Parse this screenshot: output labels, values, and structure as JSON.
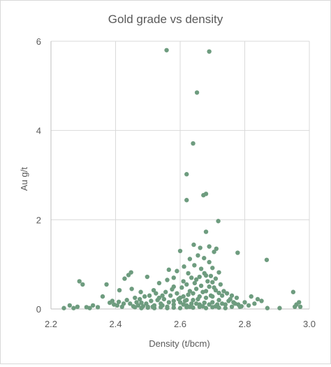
{
  "chart_data": {
    "type": "scatter",
    "title": "Gold grade vs density",
    "xlabel": "Density (t/bcm)",
    "ylabel": "Au g/t",
    "xlim": [
      2.2,
      3.0
    ],
    "ylim": [
      0,
      6
    ],
    "xticks": [
      "2.2",
      "2.4",
      "2.6",
      "2.8",
      "3.0"
    ],
    "yticks": [
      "0",
      "2",
      "4",
      "6"
    ],
    "xtick_values": [
      2.2,
      2.4,
      2.6,
      2.8,
      3.0
    ],
    "ytick_values": [
      0,
      2,
      4,
      6
    ],
    "grid": true,
    "marker_color": "#6e9c7f",
    "series": [
      {
        "points": [
          [
            2.558,
            5.8
          ],
          [
            2.69,
            5.77
          ],
          [
            2.652,
            4.85
          ],
          [
            2.64,
            3.71
          ],
          [
            2.62,
            3.02
          ],
          [
            2.62,
            2.44
          ],
          [
            2.68,
            2.58
          ],
          [
            2.672,
            2.55
          ],
          [
            2.718,
            1.97
          ],
          [
            2.68,
            1.73
          ],
          [
            2.642,
            1.44
          ],
          [
            2.662,
            1.37
          ],
          [
            2.69,
            1.4
          ],
          [
            2.778,
            1.26
          ],
          [
            2.868,
            1.1
          ],
          [
            2.712,
            1.35
          ],
          [
            2.6,
            1.3
          ],
          [
            2.655,
            1.2
          ],
          [
            2.705,
            1.28
          ],
          [
            2.63,
            1.12
          ],
          [
            2.674,
            1.14
          ],
          [
            2.69,
            1.05
          ],
          [
            2.612,
            0.95
          ],
          [
            2.644,
            0.98
          ],
          [
            2.665,
            0.9
          ],
          [
            2.7,
            0.92
          ],
          [
            2.59,
            0.85
          ],
          [
            2.625,
            0.8
          ],
          [
            2.565,
            0.88
          ],
          [
            2.72,
            0.82
          ],
          [
            2.68,
            0.75
          ],
          [
            2.56,
            0.65
          ],
          [
            2.535,
            0.58
          ],
          [
            2.448,
            0.82
          ],
          [
            2.44,
            0.76
          ],
          [
            2.428,
            0.68
          ],
          [
            2.498,
            0.72
          ],
          [
            2.58,
            0.7
          ],
          [
            2.61,
            0.62
          ],
          [
            2.65,
            0.66
          ],
          [
            2.288,
            0.62
          ],
          [
            2.298,
            0.55
          ],
          [
            2.372,
            0.55
          ],
          [
            2.412,
            0.42
          ],
          [
            2.45,
            0.45
          ],
          [
            2.478,
            0.38
          ],
          [
            2.518,
            0.42
          ],
          [
            2.545,
            0.3
          ],
          [
            2.58,
            0.5
          ],
          [
            2.62,
            0.55
          ],
          [
            2.7,
            0.6
          ],
          [
            2.735,
            0.4
          ],
          [
            2.76,
            0.3
          ],
          [
            2.82,
            0.28
          ],
          [
            2.84,
            0.22
          ],
          [
            2.852,
            0.18
          ],
          [
            2.95,
            0.38
          ],
          [
            2.96,
            0.1
          ],
          [
            2.968,
            0.15
          ],
          [
            2.972,
            0.05
          ],
          [
            2.955,
            0.05
          ],
          [
            2.908,
            0.02
          ],
          [
            2.87,
            0.02
          ],
          [
            2.812,
            0.08
          ],
          [
            2.83,
            0.12
          ],
          [
            2.8,
            0.15
          ],
          [
            2.78,
            0.1
          ],
          [
            2.24,
            0.02
          ],
          [
            2.258,
            0.08
          ],
          [
            2.27,
            0.02
          ],
          [
            2.282,
            0.05
          ],
          [
            2.31,
            0.04
          ],
          [
            2.32,
            0.02
          ],
          [
            2.33,
            0.08
          ],
          [
            2.345,
            0.04
          ],
          [
            2.36,
            0.28
          ],
          [
            2.382,
            0.14
          ],
          [
            2.395,
            0.1
          ],
          [
            2.41,
            0.16
          ],
          [
            2.42,
            0.05
          ],
          [
            2.435,
            0.2
          ],
          [
            2.445,
            0.12
          ],
          [
            2.46,
            0.25
          ],
          [
            2.47,
            0.08
          ],
          [
            2.48,
            0.14
          ],
          [
            2.49,
            0.28
          ],
          [
            2.5,
            0.05
          ],
          [
            2.51,
            0.18
          ],
          [
            2.52,
            0.08
          ],
          [
            2.53,
            0.2
          ],
          [
            2.54,
            0.12
          ],
          [
            2.55,
            0.22
          ],
          [
            2.56,
            0.05
          ],
          [
            2.57,
            0.3
          ],
          [
            2.58,
            0.1
          ],
          [
            2.59,
            0.35
          ],
          [
            2.6,
            0.15
          ],
          [
            2.61,
            0.28
          ],
          [
            2.62,
            0.08
          ],
          [
            2.63,
            0.4
          ],
          [
            2.64,
            0.2
          ],
          [
            2.65,
            0.45
          ],
          [
            2.66,
            0.1
          ],
          [
            2.67,
            0.38
          ],
          [
            2.68,
            0.25
          ],
          [
            2.69,
            0.5
          ],
          [
            2.7,
            0.15
          ],
          [
            2.71,
            0.42
          ],
          [
            2.72,
            0.2
          ],
          [
            2.73,
            0.3
          ],
          [
            2.74,
            0.1
          ],
          [
            2.75,
            0.18
          ],
          [
            2.76,
            0.05
          ],
          [
            2.77,
            0.12
          ],
          [
            2.79,
            0.06
          ],
          [
            2.6,
            0.02
          ],
          [
            2.62,
            0.04
          ],
          [
            2.64,
            0.03
          ],
          [
            2.66,
            0.05
          ],
          [
            2.68,
            0.02
          ],
          [
            2.7,
            0.04
          ],
          [
            2.72,
            0.03
          ],
          [
            2.74,
            0.02
          ],
          [
            2.58,
            0.03
          ],
          [
            2.56,
            0.02
          ],
          [
            2.54,
            0.04
          ],
          [
            2.52,
            0.02
          ],
          [
            2.5,
            0.03
          ],
          [
            2.48,
            0.02
          ],
          [
            2.46,
            0.04
          ],
          [
            2.615,
            0.18
          ],
          [
            2.625,
            0.32
          ],
          [
            2.635,
            0.12
          ],
          [
            2.645,
            0.58
          ],
          [
            2.655,
            0.22
          ],
          [
            2.665,
            0.52
          ],
          [
            2.675,
            0.14
          ],
          [
            2.685,
            0.62
          ],
          [
            2.695,
            0.3
          ],
          [
            2.705,
            0.48
          ],
          [
            2.715,
            0.1
          ],
          [
            2.725,
            0.55
          ],
          [
            2.635,
            0.7
          ],
          [
            2.66,
            0.72
          ],
          [
            2.675,
            0.8
          ],
          [
            2.695,
            0.74
          ],
          [
            2.71,
            0.68
          ],
          [
            2.605,
            0.48
          ],
          [
            2.595,
            0.22
          ],
          [
            2.575,
            0.44
          ],
          [
            2.565,
            0.15
          ],
          [
            2.555,
            0.38
          ],
          [
            2.545,
            0.08
          ],
          [
            2.535,
            0.25
          ],
          [
            2.525,
            0.35
          ],
          [
            2.515,
            0.05
          ],
          [
            2.505,
            0.3
          ],
          [
            2.495,
            0.12
          ],
          [
            2.485,
            0.06
          ],
          [
            2.475,
            0.22
          ],
          [
            2.465,
            0.15
          ],
          [
            2.455,
            0.06
          ],
          [
            2.425,
            0.12
          ],
          [
            2.405,
            0.08
          ],
          [
            2.39,
            0.18
          ],
          [
            2.745,
            0.35
          ],
          [
            2.755,
            0.22
          ],
          [
            2.765,
            0.15
          ],
          [
            2.775,
            0.25
          ],
          [
            2.785,
            0.05
          ],
          [
            2.61,
            0.1
          ],
          [
            2.63,
            0.05
          ],
          [
            2.65,
            0.12
          ],
          [
            2.67,
            0.06
          ],
          [
            2.69,
            0.1
          ],
          [
            2.71,
            0.06
          ],
          [
            2.73,
            0.12
          ],
          [
            2.6,
            0.25
          ],
          [
            2.64,
            0.35
          ],
          [
            2.68,
            0.4
          ],
          [
            2.7,
            0.28
          ],
          [
            2.72,
            0.36
          ],
          [
            2.66,
            0.28
          ],
          [
            2.62,
            0.2
          ],
          [
            2.58,
            0.18
          ]
        ]
      }
    ]
  }
}
